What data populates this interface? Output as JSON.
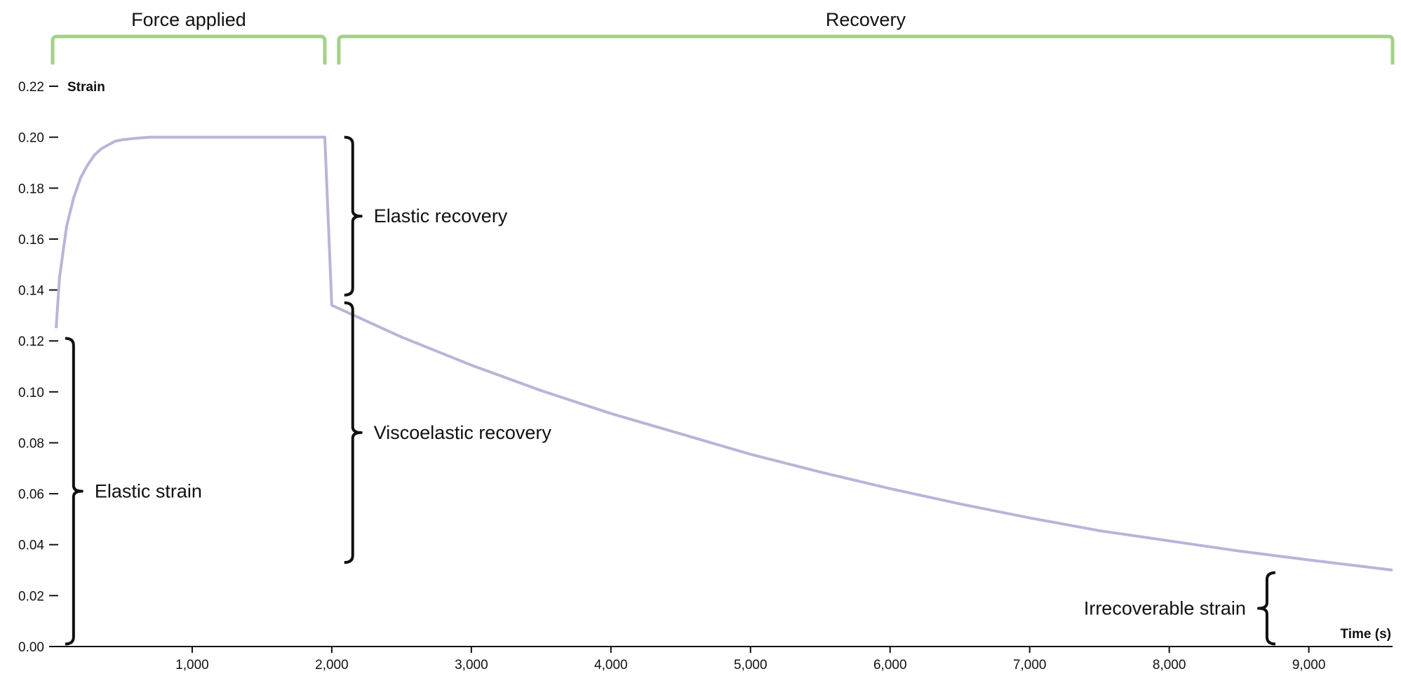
{
  "chart_data": {
    "type": "line",
    "title": "",
    "xlabel": "Time (s)",
    "ylabel": "Strain",
    "xlim": [
      0,
      9600
    ],
    "ylim": [
      0,
      0.22
    ],
    "x_ticks": [
      1000,
      2000,
      3000,
      4000,
      5000,
      6000,
      7000,
      8000,
      9000
    ],
    "x_tick_labels": [
      "1,000",
      "2,000",
      "3,000",
      "4,000",
      "5,000",
      "6,000",
      "7,000",
      "8,000",
      "9,000"
    ],
    "y_ticks": [
      0,
      0.02,
      0.04,
      0.06,
      0.08,
      0.1,
      0.12,
      0.14,
      0.16,
      0.18,
      0.2,
      0.22
    ],
    "y_tick_labels": [
      "0.00",
      "0.02",
      "0.04",
      "0.06",
      "0.08",
      "0.10",
      "0.12",
      "0.14",
      "0.16",
      "0.18",
      "0.20",
      "0.22"
    ],
    "grid": false,
    "line_color": "#b8b5d8",
    "phase_color": "#a3d18a",
    "series": [
      {
        "x": [
          25,
          50,
          100,
          150,
          200,
          250,
          300,
          350,
          400,
          450,
          500,
          600,
          700,
          800,
          1000,
          1200,
          1400,
          1600,
          1800,
          1950,
          2000,
          2500,
          3000,
          3500,
          4000,
          4500,
          5000,
          5500,
          6000,
          6500,
          7000,
          7500,
          8000,
          8500,
          9000,
          9600
        ],
        "y": [
          0.125,
          0.145,
          0.165,
          0.176,
          0.184,
          0.189,
          0.193,
          0.1955,
          0.197,
          0.1985,
          0.199,
          0.1996,
          0.2,
          0.2,
          0.2,
          0.2,
          0.2,
          0.2,
          0.2,
          0.2,
          0.134,
          0.1215,
          0.1105,
          0.1005,
          0.0915,
          0.0835,
          0.0755,
          0.0685,
          0.062,
          0.056,
          0.0505,
          0.0455,
          0.0415,
          0.0375,
          0.034,
          0.03
        ]
      }
    ],
    "phases": [
      {
        "label": "Force applied",
        "x_start": 0,
        "x_end": 1950
      },
      {
        "label": "Recovery",
        "x_start": 2050,
        "x_end": 9600
      }
    ],
    "annotations": [
      {
        "label": "Elastic strain",
        "x": 150,
        "y_low": 0.001,
        "y_high": 0.121,
        "text_side": "right"
      },
      {
        "label": "Elastic recovery",
        "x": 2150,
        "y_low": 0.138,
        "y_high": 0.2,
        "text_side": "right"
      },
      {
        "label": "Viscoelastic recovery",
        "x": 2150,
        "y_low": 0.033,
        "y_high": 0.135,
        "text_side": "right"
      },
      {
        "label": "Irrecoverable strain",
        "x": 8700,
        "y_low": 0.001,
        "y_high": 0.029,
        "text_side": "left"
      }
    ]
  }
}
